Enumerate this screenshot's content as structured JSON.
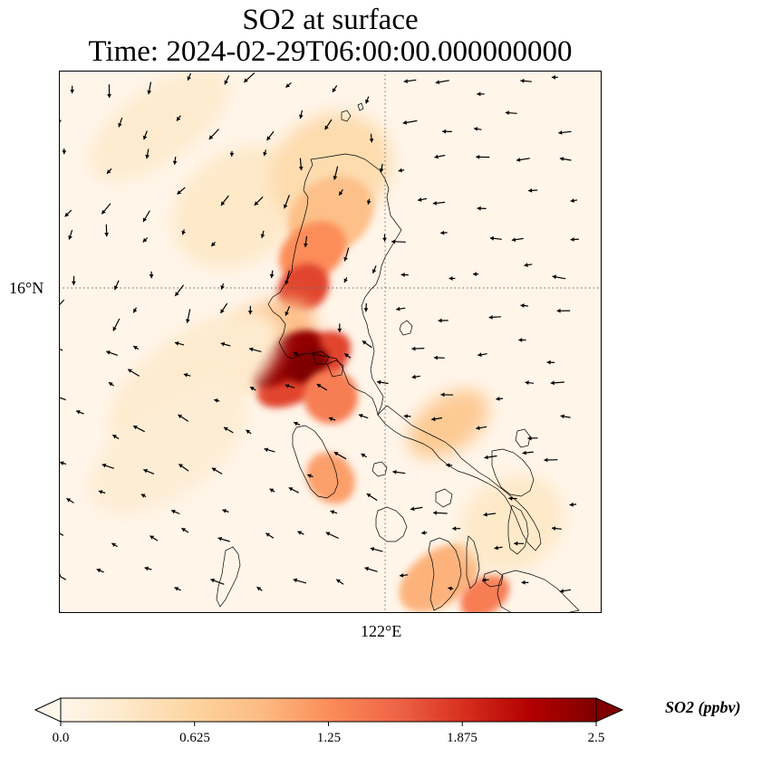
{
  "title": {
    "line1": "SO2 at surface",
    "line2": "Time: 2024-02-29T06:00:00.000000000"
  },
  "map": {
    "lat_label": "16°N",
    "lon_label": "122°E",
    "gridline_style": "dotted",
    "coastlines": true,
    "wind_vectors": true
  },
  "colorbar": {
    "label": "SO2 (ppbv)",
    "colormap": "OrRd",
    "min": 0.0,
    "max": 2.5,
    "extend": "both",
    "ticks": [
      "0.0",
      "0.625",
      "1.25",
      "1.875",
      "2.5"
    ],
    "colors": [
      "#fff7ec",
      "#fee8c8",
      "#fdd49e",
      "#fdbb84",
      "#fc8d59",
      "#ef6548",
      "#d7301f",
      "#b30000",
      "#7f0000"
    ]
  }
}
